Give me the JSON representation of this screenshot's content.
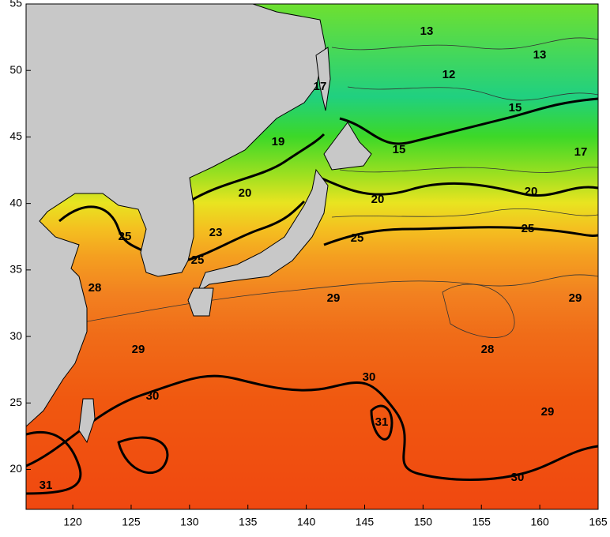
{
  "xlim": [
    116,
    165
  ],
  "ylim": [
    17,
    55
  ],
  "xticks": [
    120,
    125,
    130,
    135,
    140,
    145,
    150,
    155,
    160,
    165
  ],
  "yticks": [
    20,
    25,
    30,
    35,
    40,
    45,
    50,
    55
  ],
  "contour_labels": [
    13,
    13,
    12,
    17,
    15,
    19,
    15,
    17,
    20,
    20,
    20,
    23,
    25,
    25,
    25,
    25,
    28,
    29,
    29,
    29,
    28,
    30,
    30,
    31,
    29,
    30,
    31
  ]
}
